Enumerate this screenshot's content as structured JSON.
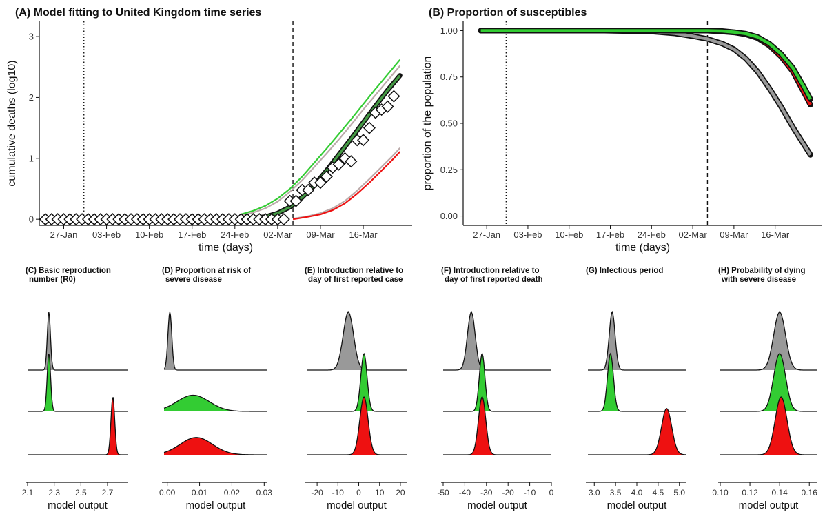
{
  "colors": {
    "gray": "#999999",
    "green": "#33cc33",
    "red": "#ee1111",
    "gray_line": "#bbaaaa",
    "dark_green": "#449944",
    "black": "#000000"
  },
  "chart_data": [
    {
      "id": "A",
      "type": "line",
      "title": "(A) Model fitting to United Kingdom time series",
      "xlabel": "time (days)",
      "ylabel": "cumulative deaths (log10)",
      "x_ticks": [
        "27-Jan",
        "03-Feb",
        "10-Feb",
        "17-Feb",
        "24-Feb",
        "02-Mar",
        "09-Mar",
        "16-Mar"
      ],
      "x_tick_days": [
        0,
        7,
        14,
        21,
        28,
        35,
        42,
        49
      ],
      "xlim": [
        -4,
        57
      ],
      "y_ticks": [
        "0",
        "1",
        "2",
        "3"
      ],
      "ylim": [
        -0.1,
        3.25
      ],
      "vlines": [
        {
          "day": 3.3,
          "style": "dotted"
        },
        {
          "day": 37.5,
          "style": "dashed"
        }
      ],
      "series": [
        {
          "color": "green",
          "x": [
            29,
            31,
            33,
            35,
            37,
            39,
            41,
            43,
            45,
            47,
            49,
            51,
            53,
            55
          ],
          "y": [
            0.08,
            0.14,
            0.22,
            0.34,
            0.5,
            0.7,
            0.93,
            1.16,
            1.4,
            1.64,
            1.89,
            2.14,
            2.38,
            2.62
          ]
        },
        {
          "color": "gray_line",
          "x": [
            29,
            31,
            33,
            35,
            37,
            39,
            41,
            43,
            45,
            47,
            49,
            51,
            53,
            55
          ],
          "y": [
            0.06,
            0.11,
            0.18,
            0.29,
            0.45,
            0.64,
            0.86,
            1.08,
            1.31,
            1.55,
            1.8,
            2.04,
            2.28,
            2.52
          ]
        },
        {
          "color": "gray_line",
          "x": [
            37.5,
            40,
            42,
            44,
            46,
            48,
            50,
            52,
            54,
            55
          ],
          "y": [
            0.01,
            0.05,
            0.1,
            0.18,
            0.3,
            0.47,
            0.66,
            0.86,
            1.06,
            1.17
          ]
        },
        {
          "color": "red",
          "x": [
            37.5,
            40,
            42,
            44,
            46,
            48,
            50,
            52,
            54,
            55
          ],
          "y": [
            0.0,
            0.04,
            0.08,
            0.15,
            0.26,
            0.42,
            0.6,
            0.8,
            1.0,
            1.11
          ]
        },
        {
          "color": "dark_green",
          "x": [
            29,
            31,
            33,
            35,
            37,
            39,
            41,
            43,
            45,
            47,
            49,
            51,
            53,
            55
          ],
          "y": [
            0.0,
            0.02,
            0.04,
            0.1,
            0.2,
            0.36,
            0.56,
            0.8,
            1.06,
            1.32,
            1.59,
            1.86,
            2.12,
            2.36
          ]
        }
      ],
      "observed": {
        "x": [
          -3,
          -2,
          -1,
          0,
          1,
          2,
          3,
          4,
          5,
          6,
          7,
          8,
          9,
          10,
          11,
          12,
          13,
          14,
          15,
          16,
          17,
          18,
          19,
          20,
          21,
          22,
          23,
          24,
          25,
          26,
          27,
          28,
          29,
          30,
          31,
          32,
          33,
          34,
          35,
          36,
          37,
          38,
          39,
          40,
          41,
          42,
          43,
          44,
          45,
          46,
          47,
          48,
          49,
          50,
          51,
          52,
          53,
          54
        ],
        "y": [
          0,
          0,
          0,
          0,
          0,
          0,
          0,
          0,
          0,
          0,
          0,
          0,
          0,
          0,
          0,
          0,
          0,
          0,
          0,
          0,
          0,
          0,
          0,
          0,
          0,
          0,
          0,
          0,
          0,
          0,
          0,
          0,
          0,
          0,
          0,
          0,
          0,
          0,
          0,
          0,
          0.3,
          0.3,
          0.48,
          0.48,
          0.6,
          0.6,
          0.7,
          0.85,
          0.9,
          1.0,
          0.95,
          1.3,
          1.3,
          1.5,
          1.75,
          1.8,
          1.85,
          2.02
        ]
      }
    },
    {
      "id": "B",
      "type": "line",
      "title": "(B) Proportion of susceptibles",
      "xlabel": "time (days)",
      "ylabel": "proportion of the population",
      "x_ticks": [
        "27-Jan",
        "03-Feb",
        "10-Feb",
        "17-Feb",
        "24-Feb",
        "02-Mar",
        "09-Mar",
        "16-Mar"
      ],
      "x_tick_days": [
        0,
        7,
        14,
        21,
        28,
        35,
        42,
        49
      ],
      "xlim": [
        -4,
        57
      ],
      "y_ticks": [
        "0.00",
        "0.25",
        "0.50",
        "0.75",
        "1.00"
      ],
      "ylim": [
        -0.05,
        1.05
      ],
      "vlines": [
        {
          "day": 3.3,
          "style": "dotted"
        },
        {
          "day": 37.5,
          "style": "dashed"
        }
      ],
      "series": [
        {
          "color": "gray",
          "x": [
            -1,
            10,
            20,
            28,
            32,
            35,
            37.5,
            40,
            42,
            44,
            46,
            48,
            50,
            52,
            54,
            55
          ],
          "y": [
            1.0,
            1.0,
            1.0,
            0.995,
            0.985,
            0.97,
            0.955,
            0.93,
            0.9,
            0.85,
            0.78,
            0.69,
            0.59,
            0.48,
            0.38,
            0.33
          ]
        },
        {
          "color": "red",
          "x": [
            -1,
            10,
            20,
            30,
            37.5,
            40,
            42,
            44,
            46,
            48,
            50,
            52,
            54,
            55
          ],
          "y": [
            1.0,
            1.0,
            1.0,
            1.0,
            1.0,
            0.995,
            0.99,
            0.98,
            0.96,
            0.92,
            0.86,
            0.78,
            0.66,
            0.6
          ]
        },
        {
          "color": "green",
          "x": [
            -1,
            10,
            20,
            30,
            37.5,
            40,
            42,
            44,
            46,
            48,
            50,
            52,
            54,
            55
          ],
          "y": [
            1.0,
            1.0,
            1.0,
            1.0,
            1.0,
            0.998,
            0.992,
            0.984,
            0.966,
            0.93,
            0.875,
            0.8,
            0.69,
            0.63
          ]
        }
      ]
    },
    {
      "id": "C",
      "type": "ridgeline",
      "title": "(C) Basic reproduction\nnumber (R0)",
      "xlabel": "model output",
      "x_ticks": [
        2.1,
        2.3,
        2.5,
        2.7
      ],
      "xlim": [
        2.1,
        2.85
      ],
      "ridges": [
        {
          "color": "gray",
          "mode": 2.26,
          "sd": 0.012,
          "height": 1.0
        },
        {
          "color": "green",
          "mode": 2.26,
          "sd": 0.013,
          "height": 1.0
        },
        {
          "color": "red",
          "mode": 2.74,
          "sd": 0.014,
          "height": 1.0
        }
      ]
    },
    {
      "id": "D",
      "type": "ridgeline",
      "title": "(D) Proportion at risk of\nsevere disease",
      "xlabel": "model output",
      "x_ticks": [
        0.0,
        0.01,
        0.02,
        0.03
      ],
      "x_tick_labels": [
        "0.00",
        "0.01",
        "0.02",
        "0.03"
      ],
      "xlim": [
        -0.001,
        0.031
      ],
      "ridges": [
        {
          "color": "gray",
          "mode": 0.0008,
          "sd": 0.0006,
          "height": 1.0
        },
        {
          "color": "green",
          "mode": 0.008,
          "sd": 0.005,
          "height": 0.28
        },
        {
          "color": "red",
          "mode": 0.009,
          "sd": 0.005,
          "height": 0.3
        }
      ]
    },
    {
      "id": "E",
      "type": "ridgeline",
      "title": "(E) Introduction relative to\nday of first reported case",
      "xlabel": "model output",
      "x_ticks": [
        -20,
        -10,
        0,
        10,
        20
      ],
      "xlim": [
        -25,
        23
      ],
      "ridges": [
        {
          "color": "gray",
          "mode": -5,
          "sd": 2.5,
          "height": 1.0
        },
        {
          "color": "green",
          "mode": 2.5,
          "sd": 1.5,
          "height": 1.0
        },
        {
          "color": "red",
          "mode": 2.5,
          "sd": 2.0,
          "height": 1.0
        }
      ]
    },
    {
      "id": "F",
      "type": "ridgeline",
      "title": "(F) Introduction relative to\nday of first reported death",
      "xlabel": "model output",
      "x_ticks": [
        -50,
        -40,
        -30,
        -20,
        -10,
        0
      ],
      "xlim": [
        -50,
        0
      ],
      "ridges": [
        {
          "color": "gray",
          "mode": -37,
          "sd": 1.8,
          "height": 1.0
        },
        {
          "color": "green",
          "mode": -32,
          "sd": 1.3,
          "height": 1.0
        },
        {
          "color": "red",
          "mode": -32,
          "sd": 1.7,
          "height": 1.0
        }
      ]
    },
    {
      "id": "G",
      "type": "ridgeline",
      "title": "(G) Infectious period",
      "xlabel": "model output",
      "x_ticks": [
        3.0,
        3.5,
        4.0,
        4.5,
        5.0
      ],
      "x_tick_labels": [
        "3.0",
        "3.5",
        "4.0",
        "4.5",
        "5.0"
      ],
      "xlim": [
        2.85,
        5.15
      ],
      "ridges": [
        {
          "color": "gray",
          "mode": 3.42,
          "sd": 0.07,
          "height": 1.0
        },
        {
          "color": "green",
          "mode": 3.38,
          "sd": 0.07,
          "height": 1.0
        },
        {
          "color": "red",
          "mode": 4.7,
          "sd": 0.12,
          "height": 0.8
        }
      ]
    },
    {
      "id": "H",
      "type": "ridgeline",
      "title": "(H) Probability of dying\nwith severe disease",
      "xlabel": "model output",
      "x_ticks": [
        0.1,
        0.12,
        0.14,
        0.16
      ],
      "x_tick_labels": [
        "0.10",
        "0.12",
        "0.14",
        "0.16"
      ],
      "xlim": [
        0.1,
        0.165
      ],
      "ridges": [
        {
          "color": "gray",
          "mode": 0.14,
          "sd": 0.004,
          "height": 1.0
        },
        {
          "color": "green",
          "mode": 0.14,
          "sd": 0.004,
          "height": 1.0
        },
        {
          "color": "red",
          "mode": 0.141,
          "sd": 0.004,
          "height": 1.0
        }
      ]
    }
  ]
}
